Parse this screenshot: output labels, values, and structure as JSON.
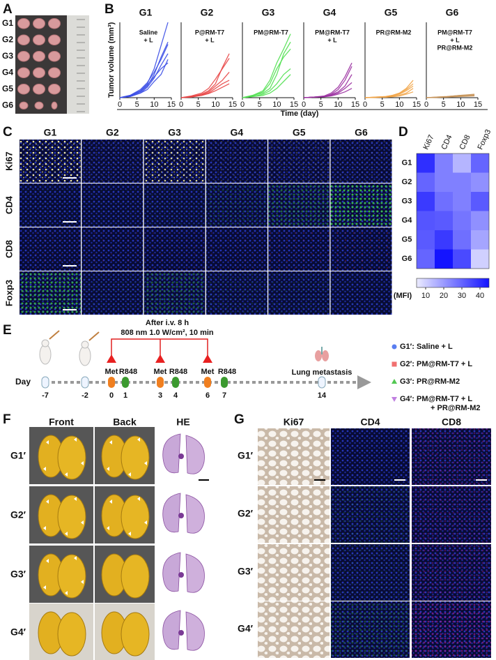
{
  "figure": {
    "panel_labels": [
      "A",
      "B",
      "C",
      "D",
      "E",
      "F",
      "G"
    ],
    "a_rows": [
      "G1",
      "G2",
      "G3",
      "G4",
      "G5",
      "G6"
    ],
    "b": {
      "y_label": "Tumor volume (mm³)",
      "x_label": "Time (day)"
    },
    "c": {
      "columns": [
        "G1",
        "G2",
        "G3",
        "G4",
        "G5",
        "G6"
      ],
      "rows": [
        "Ki67",
        "CD4",
        "CD8",
        "Foxp3"
      ]
    },
    "e": {
      "header": [
        "After i.v. 8 h",
        "808 nm 1.0 W/cm², 10 min"
      ],
      "day_label": "Day",
      "timeline": [
        {
          "day": -7
        },
        {
          "day": -2
        },
        {
          "day": 0,
          "event": "Met"
        },
        {
          "day": 1,
          "event": "R848"
        },
        {
          "day": 3,
          "event": "Met"
        },
        {
          "day": 4,
          "event": "R848"
        },
        {
          "day": 6,
          "event": "Met"
        },
        {
          "day": 7,
          "event": "R848"
        },
        {
          "day": 14,
          "event": "Lung metastasis"
        }
      ],
      "legend": [
        [
          "G1′: Saline + L"
        ],
        [
          "G2′: PM@RM-T7 + L"
        ],
        [
          "G3′: PR@RM-M2"
        ],
        [
          "G4′: PM@RM-T7 + L",
          "+ PR@RM-M2"
        ]
      ]
    },
    "f": {
      "columns": [
        "Front",
        "Back",
        "HE"
      ],
      "rows": [
        "G1′",
        "G2′",
        "G3′",
        "G4′"
      ]
    },
    "g": {
      "columns": [
        "Ki67",
        "CD4",
        "CD8"
      ],
      "rows": [
        "G1′",
        "G2′",
        "G3′",
        "G4′"
      ]
    }
  },
  "chart_data": [
    {
      "type": "line",
      "title": "G1",
      "annotations": [
        "Saline",
        "+ L"
      ],
      "color": "#3c4fe6",
      "x": [
        0,
        3,
        6,
        8,
        10,
        12,
        14
      ],
      "xlim": [
        0,
        15
      ],
      "xticks": [
        0,
        5,
        10,
        15
      ],
      "ylim": [
        0,
        650
      ],
      "series": [
        {
          "values": [
            0,
            20,
            60,
            120,
            250,
            450,
            650
          ]
        },
        {
          "values": [
            0,
            15,
            50,
            100,
            200,
            350,
            480
          ]
        },
        {
          "values": [
            0,
            20,
            70,
            130,
            220,
            330,
            460
          ]
        },
        {
          "values": [
            0,
            10,
            40,
            90,
            170,
            280,
            380
          ]
        },
        {
          "values": [
            0,
            15,
            55,
            110,
            180,
            250,
            300
          ]
        },
        {
          "values": [
            0,
            10,
            40,
            70,
            140,
            200,
            330
          ]
        }
      ]
    },
    {
      "type": "line",
      "title": "G2",
      "annotations": [
        "P@RM-T7",
        "+ L"
      ],
      "color": "#e84545",
      "x": [
        0,
        3,
        6,
        8,
        10,
        12,
        14
      ],
      "xlim": [
        0,
        15
      ],
      "xticks": [
        0,
        5,
        10,
        15
      ],
      "ylim": [
        0,
        650
      ],
      "series": [
        {
          "values": [
            0,
            10,
            30,
            60,
            120,
            260,
            380
          ]
        },
        {
          "values": [
            0,
            15,
            40,
            80,
            160,
            250,
            340
          ]
        },
        {
          "values": [
            0,
            10,
            25,
            50,
            100,
            150,
            220
          ]
        },
        {
          "values": [
            0,
            5,
            20,
            40,
            80,
            120,
            150
          ]
        },
        {
          "values": [
            0,
            10,
            20,
            35,
            60,
            90,
            120
          ]
        }
      ]
    },
    {
      "type": "line",
      "title": "G3",
      "annotations": [
        "PM@RM-T7"
      ],
      "color": "#52e052",
      "x": [
        0,
        3,
        6,
        8,
        10,
        12,
        14
      ],
      "xlim": [
        0,
        15
      ],
      "xticks": [
        0,
        5,
        10,
        15
      ],
      "ylim": [
        0,
        650
      ],
      "series": [
        {
          "values": [
            0,
            20,
            60,
            150,
            300,
            420,
            550
          ]
        },
        {
          "values": [
            0,
            15,
            50,
            120,
            250,
            350,
            420
          ]
        },
        {
          "values": [
            0,
            20,
            40,
            80,
            200,
            380,
            480
          ]
        },
        {
          "values": [
            0,
            10,
            30,
            60,
            120,
            200,
            250
          ]
        },
        {
          "values": [
            0,
            10,
            20,
            40,
            80,
            140,
            200
          ]
        }
      ]
    },
    {
      "type": "line",
      "title": "G4",
      "annotations": [
        "PM@RM-T7",
        "+ L"
      ],
      "color": "#9a2fa0",
      "x": [
        0,
        3,
        6,
        8,
        10,
        12,
        14
      ],
      "xlim": [
        0,
        15
      ],
      "xticks": [
        0,
        5,
        10,
        15
      ],
      "ylim": [
        0,
        650
      ],
      "series": [
        {
          "values": [
            0,
            5,
            15,
            40,
            90,
            180,
            300
          ]
        },
        {
          "values": [
            0,
            5,
            10,
            30,
            70,
            150,
            270
          ]
        },
        {
          "values": [
            0,
            5,
            10,
            25,
            50,
            100,
            200
          ]
        },
        {
          "values": [
            0,
            5,
            10,
            20,
            40,
            80,
            130
          ]
        },
        {
          "values": [
            0,
            5,
            8,
            15,
            30,
            50,
            80
          ]
        }
      ]
    },
    {
      "type": "line",
      "title": "G5",
      "annotations": [
        "PR@RM-M2"
      ],
      "color": "#f2a548",
      "x": [
        0,
        3,
        6,
        8,
        10,
        12,
        14
      ],
      "xlim": [
        0,
        15
      ],
      "xticks": [
        0,
        5,
        10,
        15
      ],
      "ylim": [
        0,
        650
      ],
      "series": [
        {
          "values": [
            0,
            5,
            10,
            20,
            40,
            80,
            150
          ]
        },
        {
          "values": [
            0,
            5,
            10,
            20,
            35,
            70,
            120
          ]
        },
        {
          "values": [
            0,
            3,
            8,
            15,
            30,
            60,
            100
          ]
        },
        {
          "values": [
            0,
            3,
            5,
            10,
            20,
            40,
            80
          ]
        },
        {
          "values": [
            0,
            2,
            5,
            8,
            15,
            30,
            50
          ]
        }
      ]
    },
    {
      "type": "line",
      "title": "G6",
      "annotations": [
        "PM@RM-T7",
        "+ L",
        "PR@RM-M2"
      ],
      "color": "#c8955a",
      "x": [
        0,
        3,
        6,
        8,
        10,
        12,
        14
      ],
      "xlim": [
        0,
        15
      ],
      "xticks": [
        0,
        5,
        10,
        15
      ],
      "ylim": [
        0,
        650
      ],
      "series": [
        {
          "values": [
            0,
            5,
            10,
            15,
            20,
            25,
            30
          ]
        },
        {
          "values": [
            0,
            5,
            10,
            15,
            20,
            22,
            25
          ]
        },
        {
          "values": [
            0,
            3,
            8,
            12,
            15,
            18,
            20
          ]
        },
        {
          "values": [
            0,
            2,
            5,
            8,
            10,
            12,
            15
          ]
        }
      ]
    },
    {
      "type": "heatmap",
      "x_categories": [
        "Ki67",
        "CD4",
        "CD8",
        "Foxp3"
      ],
      "y_categories": [
        "G1",
        "G2",
        "G3",
        "G4",
        "G5",
        "G6"
      ],
      "values": [
        [
          40,
          25,
          15,
          30
        ],
        [
          30,
          25,
          25,
          22
        ],
        [
          38,
          28,
          25,
          32
        ],
        [
          33,
          32,
          27,
          22
        ],
        [
          32,
          38,
          28,
          18
        ],
        [
          30,
          45,
          35,
          10
        ]
      ],
      "colorbar": {
        "lim": [
          5,
          45
        ],
        "ticks": [
          10,
          20,
          30,
          40
        ],
        "label": "(MFI)"
      }
    }
  ]
}
